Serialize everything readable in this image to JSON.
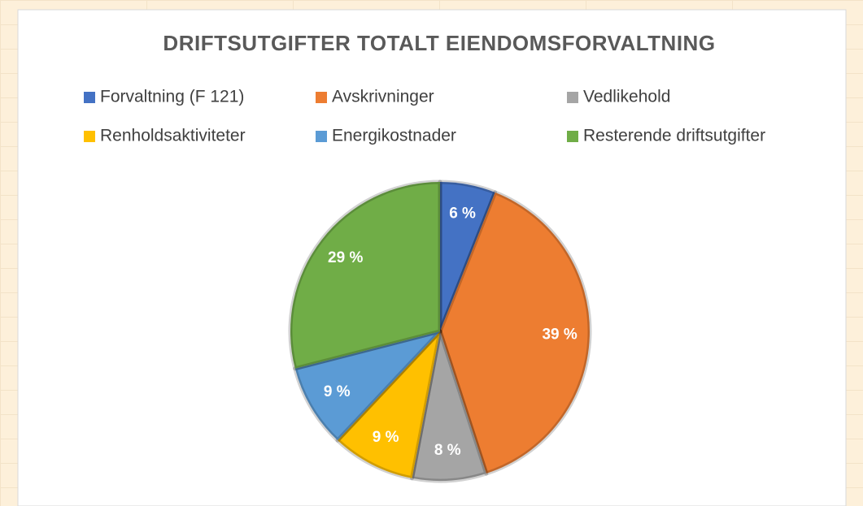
{
  "chart_data": {
    "type": "pie",
    "title": "DRIFTSUTGIFTER TOTALT EIENDOMSFORVALTNING",
    "categories": [
      "Forvaltning (F 121)",
      "Avskrivninger",
      "Vedlikehold",
      "Renholdsaktiviteter",
      "Energikostnader",
      "Resterende driftsutgifter"
    ],
    "values": [
      6,
      39,
      8,
      9,
      9,
      29
    ],
    "value_labels": [
      "6 %",
      "39 %",
      "8 %",
      "9 %",
      "9 %",
      "29 %"
    ],
    "colors": [
      "#4472c4",
      "#ed7d31",
      "#a5a5a5",
      "#ffc000",
      "#5b9bd5",
      "#70ad47"
    ],
    "legend": "top"
  }
}
